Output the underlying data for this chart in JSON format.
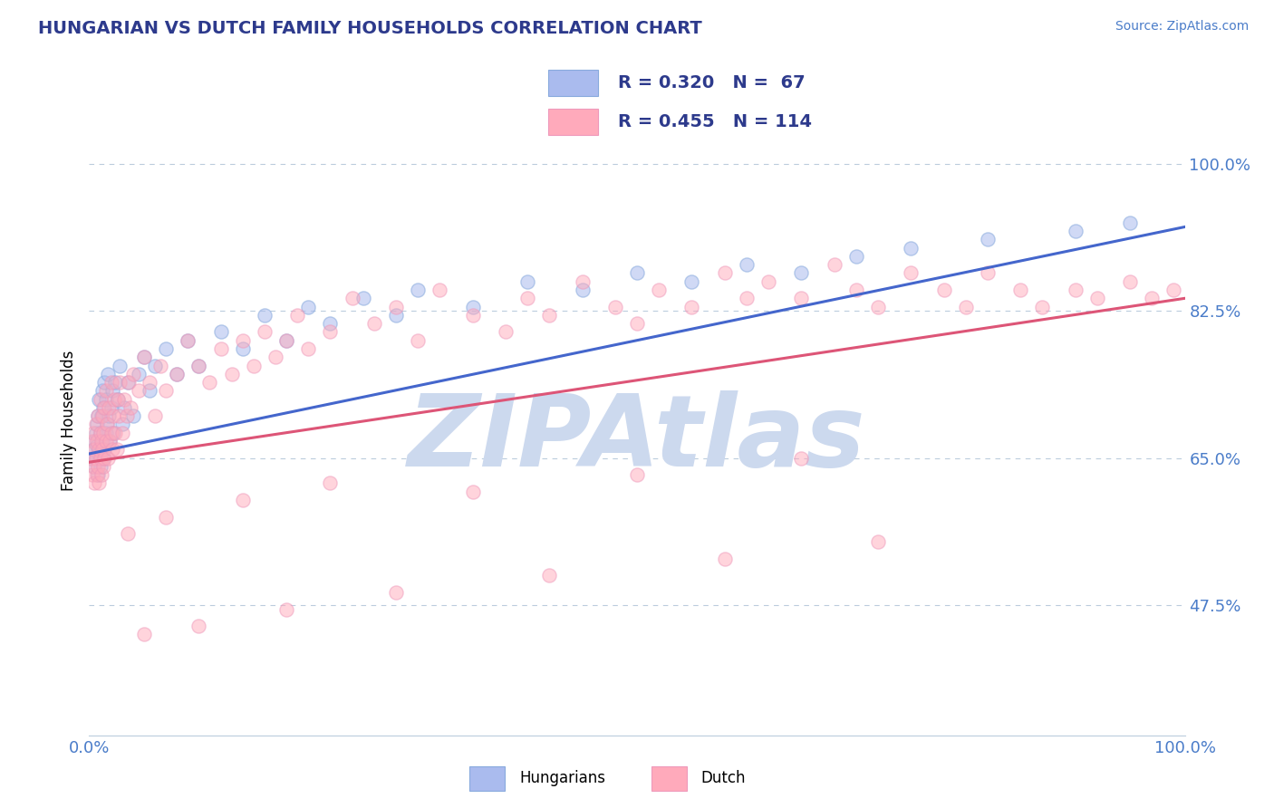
{
  "title": "HUNGARIAN VS DUTCH FAMILY HOUSEHOLDS CORRELATION CHART",
  "source": "Source: ZipAtlas.com",
  "ylabel": "Family Households",
  "xlim": [
    0.0,
    100.0
  ],
  "ylim": [
    32.0,
    107.0
  ],
  "yticks": [
    47.5,
    65.0,
    82.5,
    100.0
  ],
  "yticklabels": [
    "47.5%",
    "65.0%",
    "82.5%",
    "100.0%"
  ],
  "xticks": [
    0.0,
    100.0
  ],
  "xticklabels": [
    "0.0%",
    "100.0%"
  ],
  "title_color": "#2d3a8c",
  "axis_color": "#4a7cc9",
  "tick_color": "#4a7cc9",
  "source_color": "#4a7cc9",
  "watermark_text": "ZIPAtlas",
  "watermark_color": "#ccd9ee",
  "legend_r1": "R = 0.320",
  "legend_n1": "N =  67",
  "legend_r2": "R = 0.455",
  "legend_n2": "N = 114",
  "blue_color": "#88aadd",
  "pink_color": "#ee99bb",
  "blue_fill": "#aabbee",
  "pink_fill": "#ffaabb",
  "blue_line_color": "#4466cc",
  "pink_line_color": "#dd5577",
  "grid_color": "#bbccdd",
  "background_color": "#ffffff",
  "blue_line_y0": 65.5,
  "blue_line_y1": 92.5,
  "pink_line_y0": 64.5,
  "pink_line_y1": 84.0,
  "hungarian_x": [
    0.3,
    0.4,
    0.5,
    0.5,
    0.6,
    0.6,
    0.7,
    0.7,
    0.8,
    0.8,
    0.9,
    0.9,
    1.0,
    1.0,
    1.1,
    1.1,
    1.2,
    1.2,
    1.3,
    1.3,
    1.4,
    1.4,
    1.5,
    1.5,
    1.6,
    1.7,
    1.8,
    1.9,
    2.0,
    2.1,
    2.2,
    2.4,
    2.6,
    2.8,
    3.0,
    3.2,
    3.5,
    4.0,
    4.5,
    5.0,
    5.5,
    6.0,
    7.0,
    8.0,
    9.0,
    10.0,
    12.0,
    14.0,
    16.0,
    18.0,
    20.0,
    22.0,
    25.0,
    28.0,
    30.0,
    35.0,
    40.0,
    45.0,
    50.0,
    55.0,
    60.0,
    65.0,
    70.0,
    75.0,
    82.0,
    90.0,
    95.0
  ],
  "hungarian_y": [
    65.0,
    66.0,
    64.0,
    67.0,
    65.0,
    68.0,
    66.5,
    69.0,
    63.0,
    70.0,
    65.5,
    72.0,
    64.0,
    68.0,
    66.0,
    70.0,
    67.0,
    73.0,
    65.0,
    71.0,
    66.0,
    74.0,
    68.0,
    72.0,
    69.0,
    75.0,
    70.0,
    67.0,
    71.0,
    73.0,
    68.0,
    74.0,
    72.0,
    76.0,
    69.0,
    71.0,
    74.0,
    70.0,
    75.0,
    77.0,
    73.0,
    76.0,
    78.0,
    75.0,
    79.0,
    76.0,
    80.0,
    78.0,
    82.0,
    79.0,
    83.0,
    81.0,
    84.0,
    82.0,
    85.0,
    83.0,
    86.0,
    85.0,
    87.0,
    86.0,
    88.0,
    87.0,
    89.0,
    90.0,
    91.0,
    92.0,
    93.0
  ],
  "dutch_x": [
    0.2,
    0.3,
    0.3,
    0.4,
    0.4,
    0.5,
    0.5,
    0.6,
    0.6,
    0.7,
    0.7,
    0.8,
    0.8,
    0.9,
    0.9,
    1.0,
    1.0,
    1.0,
    1.1,
    1.1,
    1.2,
    1.2,
    1.3,
    1.3,
    1.4,
    1.4,
    1.5,
    1.5,
    1.6,
    1.7,
    1.8,
    1.9,
    2.0,
    2.0,
    2.1,
    2.2,
    2.3,
    2.4,
    2.5,
    2.6,
    2.7,
    2.8,
    3.0,
    3.2,
    3.4,
    3.6,
    3.8,
    4.0,
    4.5,
    5.0,
    5.5,
    6.0,
    6.5,
    7.0,
    8.0,
    9.0,
    10.0,
    11.0,
    12.0,
    13.0,
    14.0,
    15.0,
    16.0,
    17.0,
    18.0,
    19.0,
    20.0,
    22.0,
    24.0,
    26.0,
    28.0,
    30.0,
    32.0,
    35.0,
    38.0,
    40.0,
    42.0,
    45.0,
    48.0,
    50.0,
    52.0,
    55.0,
    58.0,
    60.0,
    62.0,
    65.0,
    68.0,
    70.0,
    72.0,
    75.0,
    78.0,
    80.0,
    82.0,
    85.0,
    87.0,
    90.0,
    92.0,
    95.0,
    97.0,
    99.0,
    3.5,
    5.0,
    7.0,
    10.0,
    14.0,
    18.0,
    22.0,
    28.0,
    35.0,
    42.0,
    50.0,
    58.0,
    65.0,
    72.0
  ],
  "dutch_y": [
    65.0,
    63.0,
    67.0,
    64.0,
    68.0,
    62.0,
    66.0,
    65.0,
    69.0,
    63.0,
    67.0,
    64.0,
    70.0,
    62.0,
    66.0,
    65.0,
    68.0,
    72.0,
    63.0,
    67.0,
    66.0,
    70.0,
    64.0,
    68.0,
    65.0,
    71.0,
    67.0,
    73.0,
    69.0,
    65.0,
    71.0,
    67.0,
    68.0,
    74.0,
    66.0,
    70.0,
    72.0,
    68.0,
    66.0,
    72.0,
    70.0,
    74.0,
    68.0,
    72.0,
    70.0,
    74.0,
    71.0,
    75.0,
    73.0,
    77.0,
    74.0,
    70.0,
    76.0,
    73.0,
    75.0,
    79.0,
    76.0,
    74.0,
    78.0,
    75.0,
    79.0,
    76.0,
    80.0,
    77.0,
    79.0,
    82.0,
    78.0,
    80.0,
    84.0,
    81.0,
    83.0,
    79.0,
    85.0,
    82.0,
    80.0,
    84.0,
    82.0,
    86.0,
    83.0,
    81.0,
    85.0,
    83.0,
    87.0,
    84.0,
    86.0,
    84.0,
    88.0,
    85.0,
    83.0,
    87.0,
    85.0,
    83.0,
    87.0,
    85.0,
    83.0,
    85.0,
    84.0,
    86.0,
    84.0,
    85.0,
    56.0,
    44.0,
    58.0,
    45.0,
    60.0,
    47.0,
    62.0,
    49.0,
    61.0,
    51.0,
    63.0,
    53.0,
    65.0,
    55.0
  ]
}
